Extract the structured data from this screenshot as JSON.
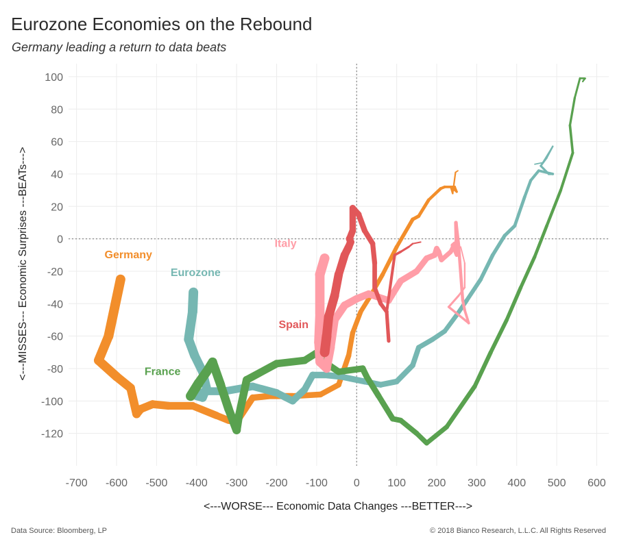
{
  "header": {
    "title": "Eurozone Economies on the Rebound",
    "subtitle": "Germany leading a return to data beats"
  },
  "footer": {
    "source": "Data Source: Bloomberg, LP",
    "copyright": "© 2018 Bianco Research, L.L.C. All Rights Reserved"
  },
  "chart_data": {
    "type": "line",
    "title": "Eurozone Economies on the Rebound",
    "subtitle": "Germany leading a return to data beats",
    "xlabel": "<---WORSE--- Economic Data Changes ---BETTER--->",
    "ylabel": "<---MISSES--- Economic Surprises ---BEATs--->",
    "xlim": [
      -720,
      630
    ],
    "ylim": [
      -140,
      108
    ],
    "x_ticks": [
      -700,
      -600,
      -500,
      -400,
      -300,
      -200,
      -100,
      0,
      100,
      200,
      300,
      400,
      500,
      600
    ],
    "y_ticks": [
      -120,
      -100,
      -80,
      -60,
      -40,
      -20,
      0,
      20,
      40,
      60,
      80,
      100
    ],
    "grid": true,
    "reference_lines": {
      "x": 0,
      "y": 0
    },
    "series": [
      {
        "name": "Germany",
        "color": "#f28e2b",
        "label_at": [
          -630,
          -12
        ],
        "points": [
          [
            -590,
            -25
          ],
          [
            -620,
            -60
          ],
          [
            -645,
            -75
          ],
          [
            -600,
            -85
          ],
          [
            -565,
            -92
          ],
          [
            -550,
            -108
          ],
          [
            -540,
            -105
          ],
          [
            -510,
            -102
          ],
          [
            -470,
            -103
          ],
          [
            -410,
            -103
          ],
          [
            -350,
            -109
          ],
          [
            -320,
            -112
          ],
          [
            -300,
            -113
          ],
          [
            -260,
            -98
          ],
          [
            -220,
            -97
          ],
          [
            -160,
            -97
          ],
          [
            -90,
            -96
          ],
          [
            -45,
            -90
          ],
          [
            -20,
            -72
          ],
          [
            -10,
            -58
          ],
          [
            10,
            -45
          ],
          [
            35,
            -35
          ],
          [
            65,
            -22
          ],
          [
            100,
            -5
          ],
          [
            140,
            12
          ],
          [
            155,
            14
          ],
          [
            180,
            24
          ],
          [
            210,
            31
          ],
          [
            220,
            32
          ],
          [
            245,
            32
          ],
          [
            250,
            29
          ],
          [
            235,
            32
          ],
          [
            240,
            28
          ],
          [
            247,
            41
          ],
          [
            253,
            42
          ]
        ]
      },
      {
        "name": "Eurozone",
        "color": "#76b7b2",
        "label_at": [
          -465,
          -23
        ],
        "points": [
          [
            -408,
            -33
          ],
          [
            -410,
            -45
          ],
          [
            -420,
            -62
          ],
          [
            -405,
            -72
          ],
          [
            -385,
            -82
          ],
          [
            -375,
            -92
          ],
          [
            -385,
            -98
          ],
          [
            -400,
            -97
          ],
          [
            -380,
            -94
          ],
          [
            -330,
            -94
          ],
          [
            -260,
            -91
          ],
          [
            -200,
            -95
          ],
          [
            -160,
            -100
          ],
          [
            -130,
            -93
          ],
          [
            -110,
            -84
          ],
          [
            -80,
            -84
          ],
          [
            -40,
            -85
          ],
          [
            20,
            -88
          ],
          [
            60,
            -90
          ],
          [
            100,
            -88
          ],
          [
            140,
            -78
          ],
          [
            155,
            -67
          ],
          [
            190,
            -62
          ],
          [
            220,
            -57
          ],
          [
            250,
            -47
          ],
          [
            275,
            -38
          ],
          [
            310,
            -25
          ],
          [
            340,
            -10
          ],
          [
            370,
            2
          ],
          [
            395,
            8
          ],
          [
            420,
            26
          ],
          [
            435,
            36
          ],
          [
            455,
            42
          ],
          [
            490,
            40
          ],
          [
            480,
            40
          ],
          [
            460,
            45
          ],
          [
            475,
            50
          ],
          [
            490,
            57
          ],
          [
            465,
            47
          ],
          [
            445,
            46
          ]
        ]
      },
      {
        "name": "France",
        "color": "#59a14f",
        "label_at": [
          -530,
          -84
        ],
        "points": [
          [
            -415,
            -97
          ],
          [
            -395,
            -89
          ],
          [
            -375,
            -82
          ],
          [
            -360,
            -76
          ],
          [
            -340,
            -90
          ],
          [
            -320,
            -105
          ],
          [
            -300,
            -118
          ],
          [
            -295,
            -110
          ],
          [
            -275,
            -87
          ],
          [
            -200,
            -77
          ],
          [
            -130,
            -75
          ],
          [
            -85,
            -68
          ],
          [
            -75,
            -77
          ],
          [
            -45,
            -82
          ],
          [
            15,
            -80
          ],
          [
            25,
            -85
          ],
          [
            55,
            -97
          ],
          [
            90,
            -111
          ],
          [
            110,
            -112
          ],
          [
            150,
            -120
          ],
          [
            175,
            -126
          ],
          [
            225,
            -116
          ],
          [
            295,
            -91
          ],
          [
            335,
            -70
          ],
          [
            375,
            -50
          ],
          [
            410,
            -30
          ],
          [
            445,
            -11
          ],
          [
            475,
            8
          ],
          [
            510,
            30
          ],
          [
            540,
            53
          ],
          [
            533,
            70
          ],
          [
            545,
            87
          ],
          [
            558,
            99
          ],
          [
            570,
            99
          ],
          [
            565,
            97
          ],
          [
            572,
            99
          ]
        ]
      },
      {
        "name": "Italy",
        "color": "#ff9da7",
        "label_at": [
          -205,
          -5
        ],
        "points": [
          [
            -80,
            -12
          ],
          [
            -92,
            -22
          ],
          [
            -92,
            -46
          ],
          [
            -95,
            -64
          ],
          [
            -92,
            -76
          ],
          [
            -75,
            -80
          ],
          [
            -65,
            -67
          ],
          [
            -55,
            -50
          ],
          [
            -30,
            -41
          ],
          [
            0,
            -37
          ],
          [
            30,
            -34
          ],
          [
            55,
            -36
          ],
          [
            80,
            -38
          ],
          [
            110,
            -26
          ],
          [
            150,
            -20
          ],
          [
            175,
            -12
          ],
          [
            195,
            -10
          ],
          [
            200,
            -6
          ],
          [
            205,
            -8
          ],
          [
            212,
            -13
          ],
          [
            235,
            -8
          ],
          [
            245,
            -3
          ],
          [
            240,
            -4
          ],
          [
            250,
            -10
          ],
          [
            248,
            10
          ],
          [
            255,
            -5
          ],
          [
            265,
            -38
          ],
          [
            270,
            -44
          ],
          [
            280,
            -52
          ],
          [
            230,
            -42
          ],
          [
            255,
            -35
          ],
          [
            270,
            -30
          ],
          [
            270,
            -15
          ],
          [
            260,
            -5
          ]
        ]
      },
      {
        "name": "Spain",
        "color": "#e15759",
        "label_at": [
          -195,
          -55
        ],
        "points": [
          [
            -80,
            -70
          ],
          [
            -75,
            -60
          ],
          [
            -70,
            -48
          ],
          [
            -55,
            -35
          ],
          [
            -45,
            -22
          ],
          [
            -30,
            -10
          ],
          [
            -20,
            -5
          ],
          [
            -15,
            -2
          ],
          [
            -18,
            0
          ],
          [
            -10,
            5
          ],
          [
            -10,
            19
          ],
          [
            5,
            15
          ],
          [
            20,
            5
          ],
          [
            40,
            -3
          ],
          [
            45,
            -15
          ],
          [
            45,
            -30
          ],
          [
            60,
            -40
          ],
          [
            75,
            -45
          ],
          [
            80,
            -63
          ],
          [
            75,
            -45
          ],
          [
            95,
            -10
          ],
          [
            110,
            -8
          ],
          [
            130,
            -5
          ],
          [
            140,
            -3
          ],
          [
            160,
            -2
          ]
        ]
      }
    ]
  }
}
